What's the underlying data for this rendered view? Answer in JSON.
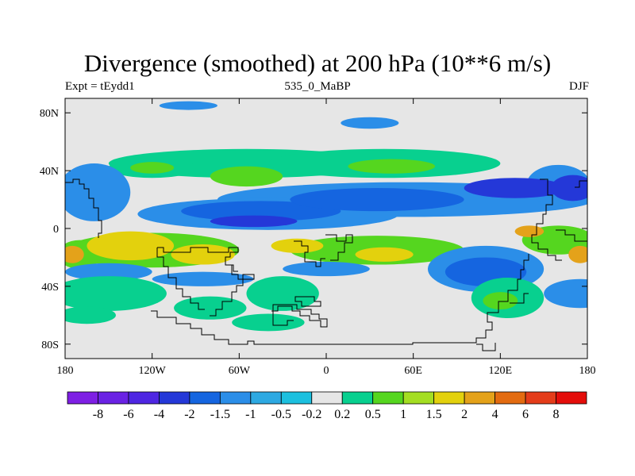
{
  "title": "Divergence (smoothed) at 200 hPa (10**6 m/s)",
  "expt_label": "Expt = tEydd1",
  "run_label": "535_0_MaBP",
  "season": "DJF",
  "map": {
    "projection": "cylindrical-equidistant",
    "lon_range": [
      -180,
      180
    ],
    "lat_range": [
      -90,
      90
    ],
    "x_ticks": [
      {
        "lon": -180,
        "label": "180"
      },
      {
        "lon": -120,
        "label": "120W"
      },
      {
        "lon": -60,
        "label": "60W"
      },
      {
        "lon": 0,
        "label": "0"
      },
      {
        "lon": 60,
        "label": "60E"
      },
      {
        "lon": 120,
        "label": "120E"
      },
      {
        "lon": 180,
        "label": "180"
      }
    ],
    "y_ticks": [
      {
        "lat": 80,
        "label": "80N"
      },
      {
        "lat": 40,
        "label": "40N"
      },
      {
        "lat": 0,
        "label": "0"
      },
      {
        "lat": -40,
        "label": "40S"
      },
      {
        "lat": -80,
        "label": "80S"
      }
    ],
    "background_color": "#e6e6e6",
    "regions": [
      {
        "lon": -55,
        "lat": 45,
        "rlon": 95,
        "rlat": 10,
        "level": 1
      },
      {
        "lon": 40,
        "lat": 45,
        "rlon": 80,
        "rlat": 10,
        "level": 1
      },
      {
        "lon": -120,
        "lat": 42,
        "rlon": 30,
        "rlat": 7,
        "level": 1
      },
      {
        "lon": -55,
        "lat": 36,
        "rlon": 25,
        "rlat": 7,
        "level": 2
      },
      {
        "lon": 45,
        "lat": 43,
        "rlon": 30,
        "rlat": 5,
        "level": 2
      },
      {
        "lon": -120,
        "lat": 42,
        "rlon": 15,
        "rlat": 4,
        "level": 2
      },
      {
        "lon": 30,
        "lat": 73,
        "rlon": 20,
        "rlat": 4,
        "level": -3
      },
      {
        "lon": -95,
        "lat": 85,
        "rlon": 20,
        "rlat": 3,
        "level": -3
      },
      {
        "lon": 55,
        "lat": 20,
        "rlon": 130,
        "rlat": 12,
        "level": -3
      },
      {
        "lon": -40,
        "lat": 10,
        "rlon": 90,
        "rlat": 11,
        "level": -3
      },
      {
        "lon": -160,
        "lat": 25,
        "rlon": 25,
        "rlat": 20,
        "level": -3
      },
      {
        "lon": 160,
        "lat": 30,
        "rlon": 22,
        "rlat": 14,
        "level": -3
      },
      {
        "lon": -45,
        "lat": 12,
        "rlon": 55,
        "rlat": 7,
        "level": -4
      },
      {
        "lon": 35,
        "lat": 20,
        "rlon": 60,
        "rlat": 8,
        "level": -4
      },
      {
        "lon": 130,
        "lat": 28,
        "rlon": 35,
        "rlat": 7,
        "level": -5
      },
      {
        "lon": 170,
        "lat": 28,
        "rlon": 15,
        "rlat": 9,
        "level": -5
      },
      {
        "lon": -50,
        "lat": 5,
        "rlon": 30,
        "rlat": 4,
        "level": -5
      },
      {
        "lon": -120,
        "lat": -15,
        "rlon": 60,
        "rlat": 12,
        "level": 2
      },
      {
        "lon": 35,
        "lat": -15,
        "rlon": 60,
        "rlat": 10,
        "level": 2
      },
      {
        "lon": 160,
        "lat": -8,
        "rlon": 25,
        "rlat": 10,
        "level": 2
      },
      {
        "lon": -170,
        "lat": -18,
        "rlon": 15,
        "rlat": 10,
        "level": 2
      },
      {
        "lon": -135,
        "lat": -12,
        "rlon": 30,
        "rlat": 10,
        "level": 4
      },
      {
        "lon": -85,
        "lat": -18,
        "rlon": 22,
        "rlat": 7,
        "level": 4
      },
      {
        "lon": -20,
        "lat": -12,
        "rlon": 18,
        "rlat": 5,
        "level": 4
      },
      {
        "lon": 40,
        "lat": -18,
        "rlon": 20,
        "rlat": 5,
        "level": 4
      },
      {
        "lon": -175,
        "lat": -18,
        "rlon": 8,
        "rlat": 6,
        "level": 5
      },
      {
        "lon": 175,
        "lat": -18,
        "rlon": 8,
        "rlat": 6,
        "level": 5
      },
      {
        "lon": 140,
        "lat": -2,
        "rlon": 10,
        "rlat": 4,
        "level": 5
      },
      {
        "lon": 110,
        "lat": -28,
        "rlon": 40,
        "rlat": 16,
        "level": -3
      },
      {
        "lon": 110,
        "lat": -30,
        "rlon": 28,
        "rlat": 10,
        "level": -4
      },
      {
        "lon": -150,
        "lat": -30,
        "rlon": 30,
        "rlat": 6,
        "level": -3
      },
      {
        "lon": -85,
        "lat": -35,
        "rlon": 35,
        "rlat": 5,
        "level": -3
      },
      {
        "lon": 0,
        "lat": -28,
        "rlon": 30,
        "rlat": 5,
        "level": -3
      },
      {
        "lon": 175,
        "lat": -45,
        "rlon": 25,
        "rlat": 10,
        "level": -3
      },
      {
        "lon": -150,
        "lat": -45,
        "rlon": 40,
        "rlat": 12,
        "level": 1
      },
      {
        "lon": -30,
        "lat": -45,
        "rlon": 25,
        "rlat": 12,
        "level": 1
      },
      {
        "lon": -40,
        "lat": -65,
        "rlon": 25,
        "rlat": 6,
        "level": 1
      },
      {
        "lon": 125,
        "lat": -48,
        "rlon": 25,
        "rlat": 14,
        "level": 1
      },
      {
        "lon": 120,
        "lat": -50,
        "rlon": 12,
        "rlat": 6,
        "level": 2
      },
      {
        "lon": -165,
        "lat": -60,
        "rlon": 20,
        "rlat": 6,
        "level": 1
      },
      {
        "lon": -80,
        "lat": -55,
        "rlon": 25,
        "rlat": 8,
        "level": 1
      }
    ]
  },
  "colorbar": {
    "colors": [
      "#7e1fe4",
      "#6a22e4",
      "#4e26e2",
      "#2438d8",
      "#1565e0",
      "#2b8ee8",
      "#2da9e2",
      "#1cc0df",
      "#e6e6e6",
      "#08d08f",
      "#55d61f",
      "#a4de22",
      "#e3d10d",
      "#e4a21a",
      "#e36b10",
      "#e43c1a",
      "#e40d0a"
    ],
    "labels": [
      "-8",
      "-6",
      "-4",
      "-2",
      "-1.5",
      "-1",
      "-0.5",
      "-0.2",
      "0.2",
      "0.5",
      "1",
      "1.5",
      "2",
      "4",
      "6",
      "8"
    ]
  }
}
